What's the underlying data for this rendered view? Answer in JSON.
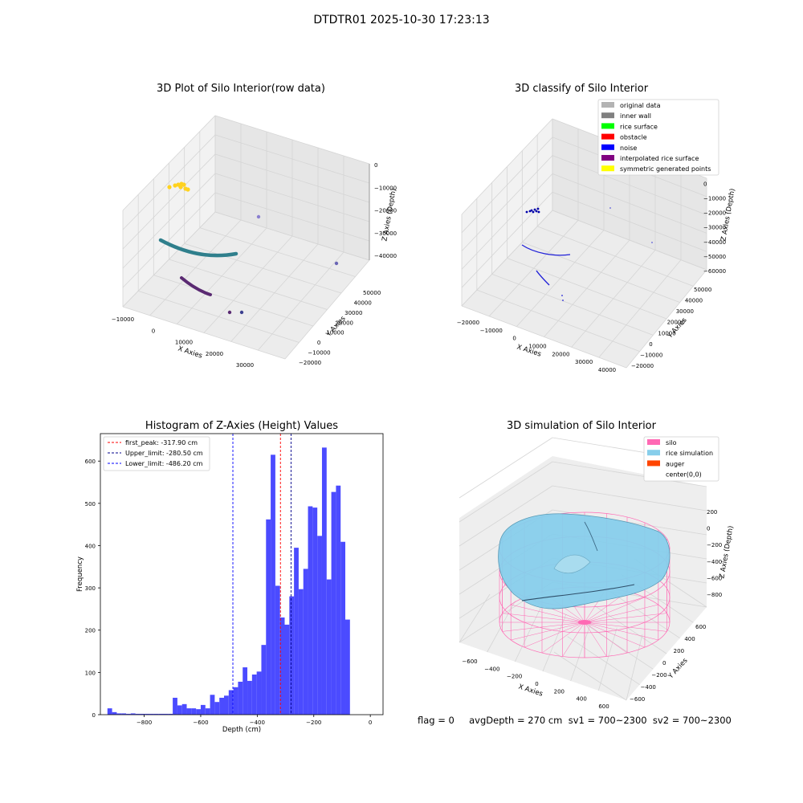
{
  "page": {
    "suptitle": "DTDTR01 2025-10-30 17:23:13",
    "footer": "flag = 0     avgDepth = 270 cm  sv1 = 700~2300  sv2 = 700~2300"
  },
  "chart_data": [
    {
      "type": "scatter",
      "projection": "3d",
      "title": "3D Plot of Silo Interior(row data)",
      "xlabel": "X Axies",
      "ylabel": "Y Axies",
      "zlabel": "Z Axies (Depth)",
      "x_ticks": [
        "−10000",
        "0",
        "10000",
        "20000",
        "30000"
      ],
      "y_ticks": [
        "−20000",
        "−10000",
        "0",
        "10000",
        "20000",
        "30000",
        "40000",
        "50000"
      ],
      "z_ticks": [
        "−40000",
        "−30000",
        "−20000",
        "−10000",
        "0"
      ],
      "grid": true,
      "colors": {
        "yellow": "#ffd21f",
        "teal": "#2f7f8c",
        "purple": "#5a2a72",
        "lavender": "#8a7fd0",
        "navy": "#3b3f8f"
      }
    },
    {
      "type": "scatter",
      "projection": "3d",
      "title": "3D classify of Silo Interior",
      "xlabel": "X Axies",
      "ylabel": "Y Axies",
      "zlabel": "Z Axies (Depth)",
      "x_ticks": [
        "−20000",
        "−10000",
        "0",
        "10000",
        "20000",
        "30000",
        "40000"
      ],
      "y_ticks": [
        "−20000",
        "−10000",
        "0",
        "10000",
        "20000",
        "30000",
        "40000",
        "50000"
      ],
      "z_ticks": [
        "−60000",
        "−50000",
        "−40000",
        "−30000",
        "−20000",
        "−10000",
        "0"
      ],
      "z_tick_cut": "00",
      "grid": true,
      "legend_position": "top-right",
      "legend": [
        {
          "label": "original data",
          "color": "#b3b3b3"
        },
        {
          "label": "inner wall",
          "color": "#808080"
        },
        {
          "label": "rice surface",
          "color": "#00ff00"
        },
        {
          "label": "obstacle",
          "color": "#ff0000"
        },
        {
          "label": "noise",
          "color": "#0000ff"
        },
        {
          "label": "interpolated rice surface",
          "color": "#800080"
        },
        {
          "label": "symmetric generated points",
          "color": "#ffff00"
        }
      ]
    },
    {
      "type": "bar",
      "title": "Histogram of Z-Axies (Height) Values",
      "xlabel": "Depth (cm)",
      "ylabel": "Frequency",
      "xlim": [
        -955,
        45
      ],
      "ylim": [
        0,
        665
      ],
      "bin_width": 16.5,
      "bin_start": -930,
      "x_ticks": [
        -800,
        -600,
        -400,
        -200,
        0
      ],
      "x_tick_labels": [
        "−800",
        "−600",
        "−400",
        "−200",
        "0"
      ],
      "y_ticks": [
        0,
        100,
        200,
        300,
        400,
        500,
        600
      ],
      "bar_color": "#4b4bff",
      "values": [
        15,
        6,
        3,
        3,
        2,
        3,
        2,
        2,
        2,
        2,
        2,
        2,
        2,
        2,
        40,
        22,
        25,
        15,
        15,
        13,
        23,
        15,
        47,
        30,
        40,
        45,
        58,
        65,
        78,
        112,
        80,
        95,
        102,
        165,
        462,
        615,
        305,
        230,
        213,
        280,
        395,
        297,
        345,
        493,
        490,
        423,
        632,
        320,
        527,
        542,
        409,
        225
      ],
      "lines": [
        {
          "label": "first_peak: -317.90 cm",
          "x": -317.9,
          "color": "#ff0000"
        },
        {
          "label": "Upper_limit: -280.50 cm",
          "x": -280.5,
          "color": "#00008b"
        },
        {
          "label": "Lower_limit: -486.20 cm",
          "x": -486.2,
          "color": "#0000ff"
        }
      ],
      "legend_position": "top-left"
    },
    {
      "type": "surface",
      "projection": "3d",
      "title": "3D simulation of Silo Interior",
      "xlabel": "X Axies",
      "ylabel": "Y Axies",
      "zlabel": "Z Axies (Depth)",
      "x_ticks": [
        "−600",
        "−400",
        "−200",
        "0",
        "200",
        "400",
        "600"
      ],
      "y_ticks": [
        "−600",
        "−400",
        "−200",
        "0",
        "200",
        "400",
        "600"
      ],
      "z_ticks": [
        "−800",
        "−600",
        "−400",
        "−200",
        "0",
        "200"
      ],
      "grid": true,
      "legend_position": "top-right",
      "legend": [
        {
          "label": "silo",
          "color": "#ff69b4"
        },
        {
          "label": "rice simulation",
          "color": "#87ceeb"
        },
        {
          "label": "auger",
          "color": "#ff4500"
        },
        {
          "label": "center(0,0)",
          "color": ""
        }
      ]
    }
  ]
}
